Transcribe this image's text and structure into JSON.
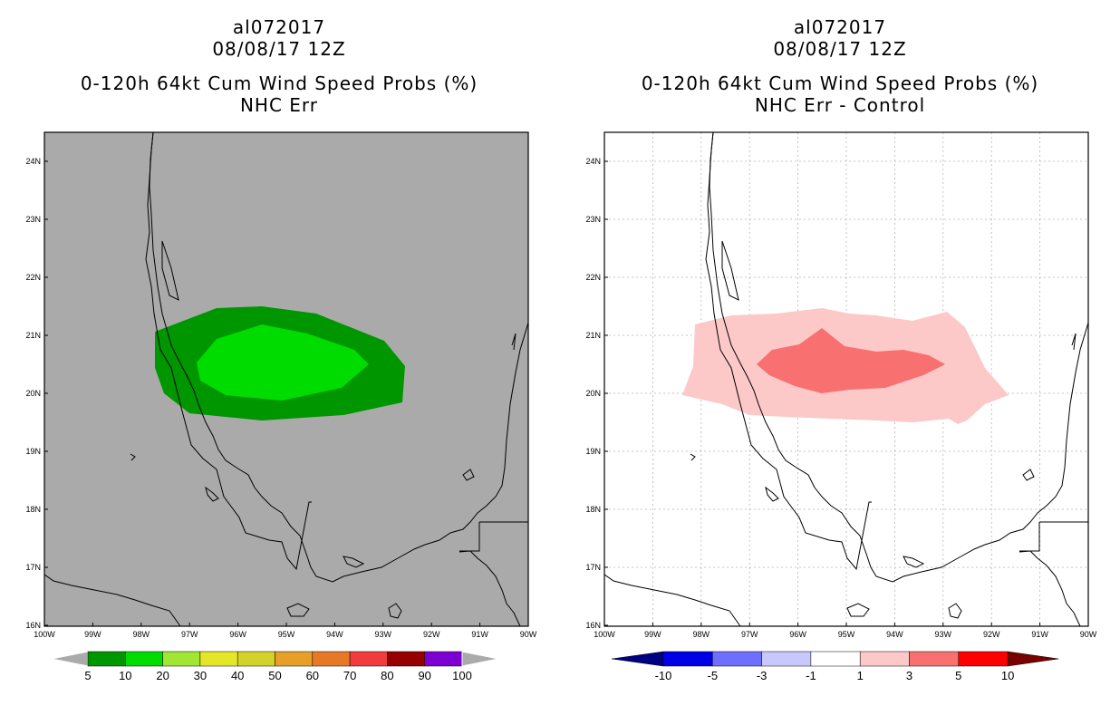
{
  "left_panel": {
    "title_line1": "al072017",
    "title_line2": "08/08/17 12Z",
    "title_line3": "0-120h 64kt Cum Wind Speed Probs (%)",
    "title_line4": "NHC Err",
    "colorbar": {
      "labels": [
        "5",
        "10",
        "20",
        "30",
        "40",
        "50",
        "60",
        "70",
        "80",
        "90",
        "100"
      ],
      "colors": [
        "#009600",
        "#00dc00",
        "#a0e632",
        "#e6e628",
        "#d2d228",
        "#e6a028",
        "#e67828",
        "#f03c3c",
        "#960000",
        "#7d00d2"
      ]
    }
  },
  "right_panel": {
    "title_line1": "al072017",
    "title_line2": "08/08/17 12Z",
    "title_line3": "0-120h 64kt Cum Wind Speed Probs (%)",
    "title_line4": "NHC Err - Control",
    "colorbar": {
      "labels": [
        "-10",
        "-5",
        "-3",
        "-1",
        "1",
        "3",
        "5",
        "10"
      ],
      "colors": [
        "#0000e6",
        "#6e6eff",
        "#c8c8ff",
        "#ffffff",
        "#fcc8c8",
        "#f87070",
        "#ff0000"
      ]
    }
  },
  "axes": {
    "lat_labels": [
      "24N",
      "23N",
      "22N",
      "21N",
      "20N",
      "19N",
      "18N",
      "17N",
      "16N"
    ],
    "lon_labels": [
      "100W",
      "99W",
      "98W",
      "97W",
      "96W",
      "95W",
      "94W",
      "93W",
      "92W",
      "91W",
      "90W"
    ]
  },
  "colors": {
    "map_bg_left": "#aaaaaa",
    "map_bg_right": "#ffffff",
    "contour_outer": "#009600",
    "contour_inner": "#00dc00",
    "diff_light": "#fcc8c8",
    "diff_dark": "#f87070"
  }
}
